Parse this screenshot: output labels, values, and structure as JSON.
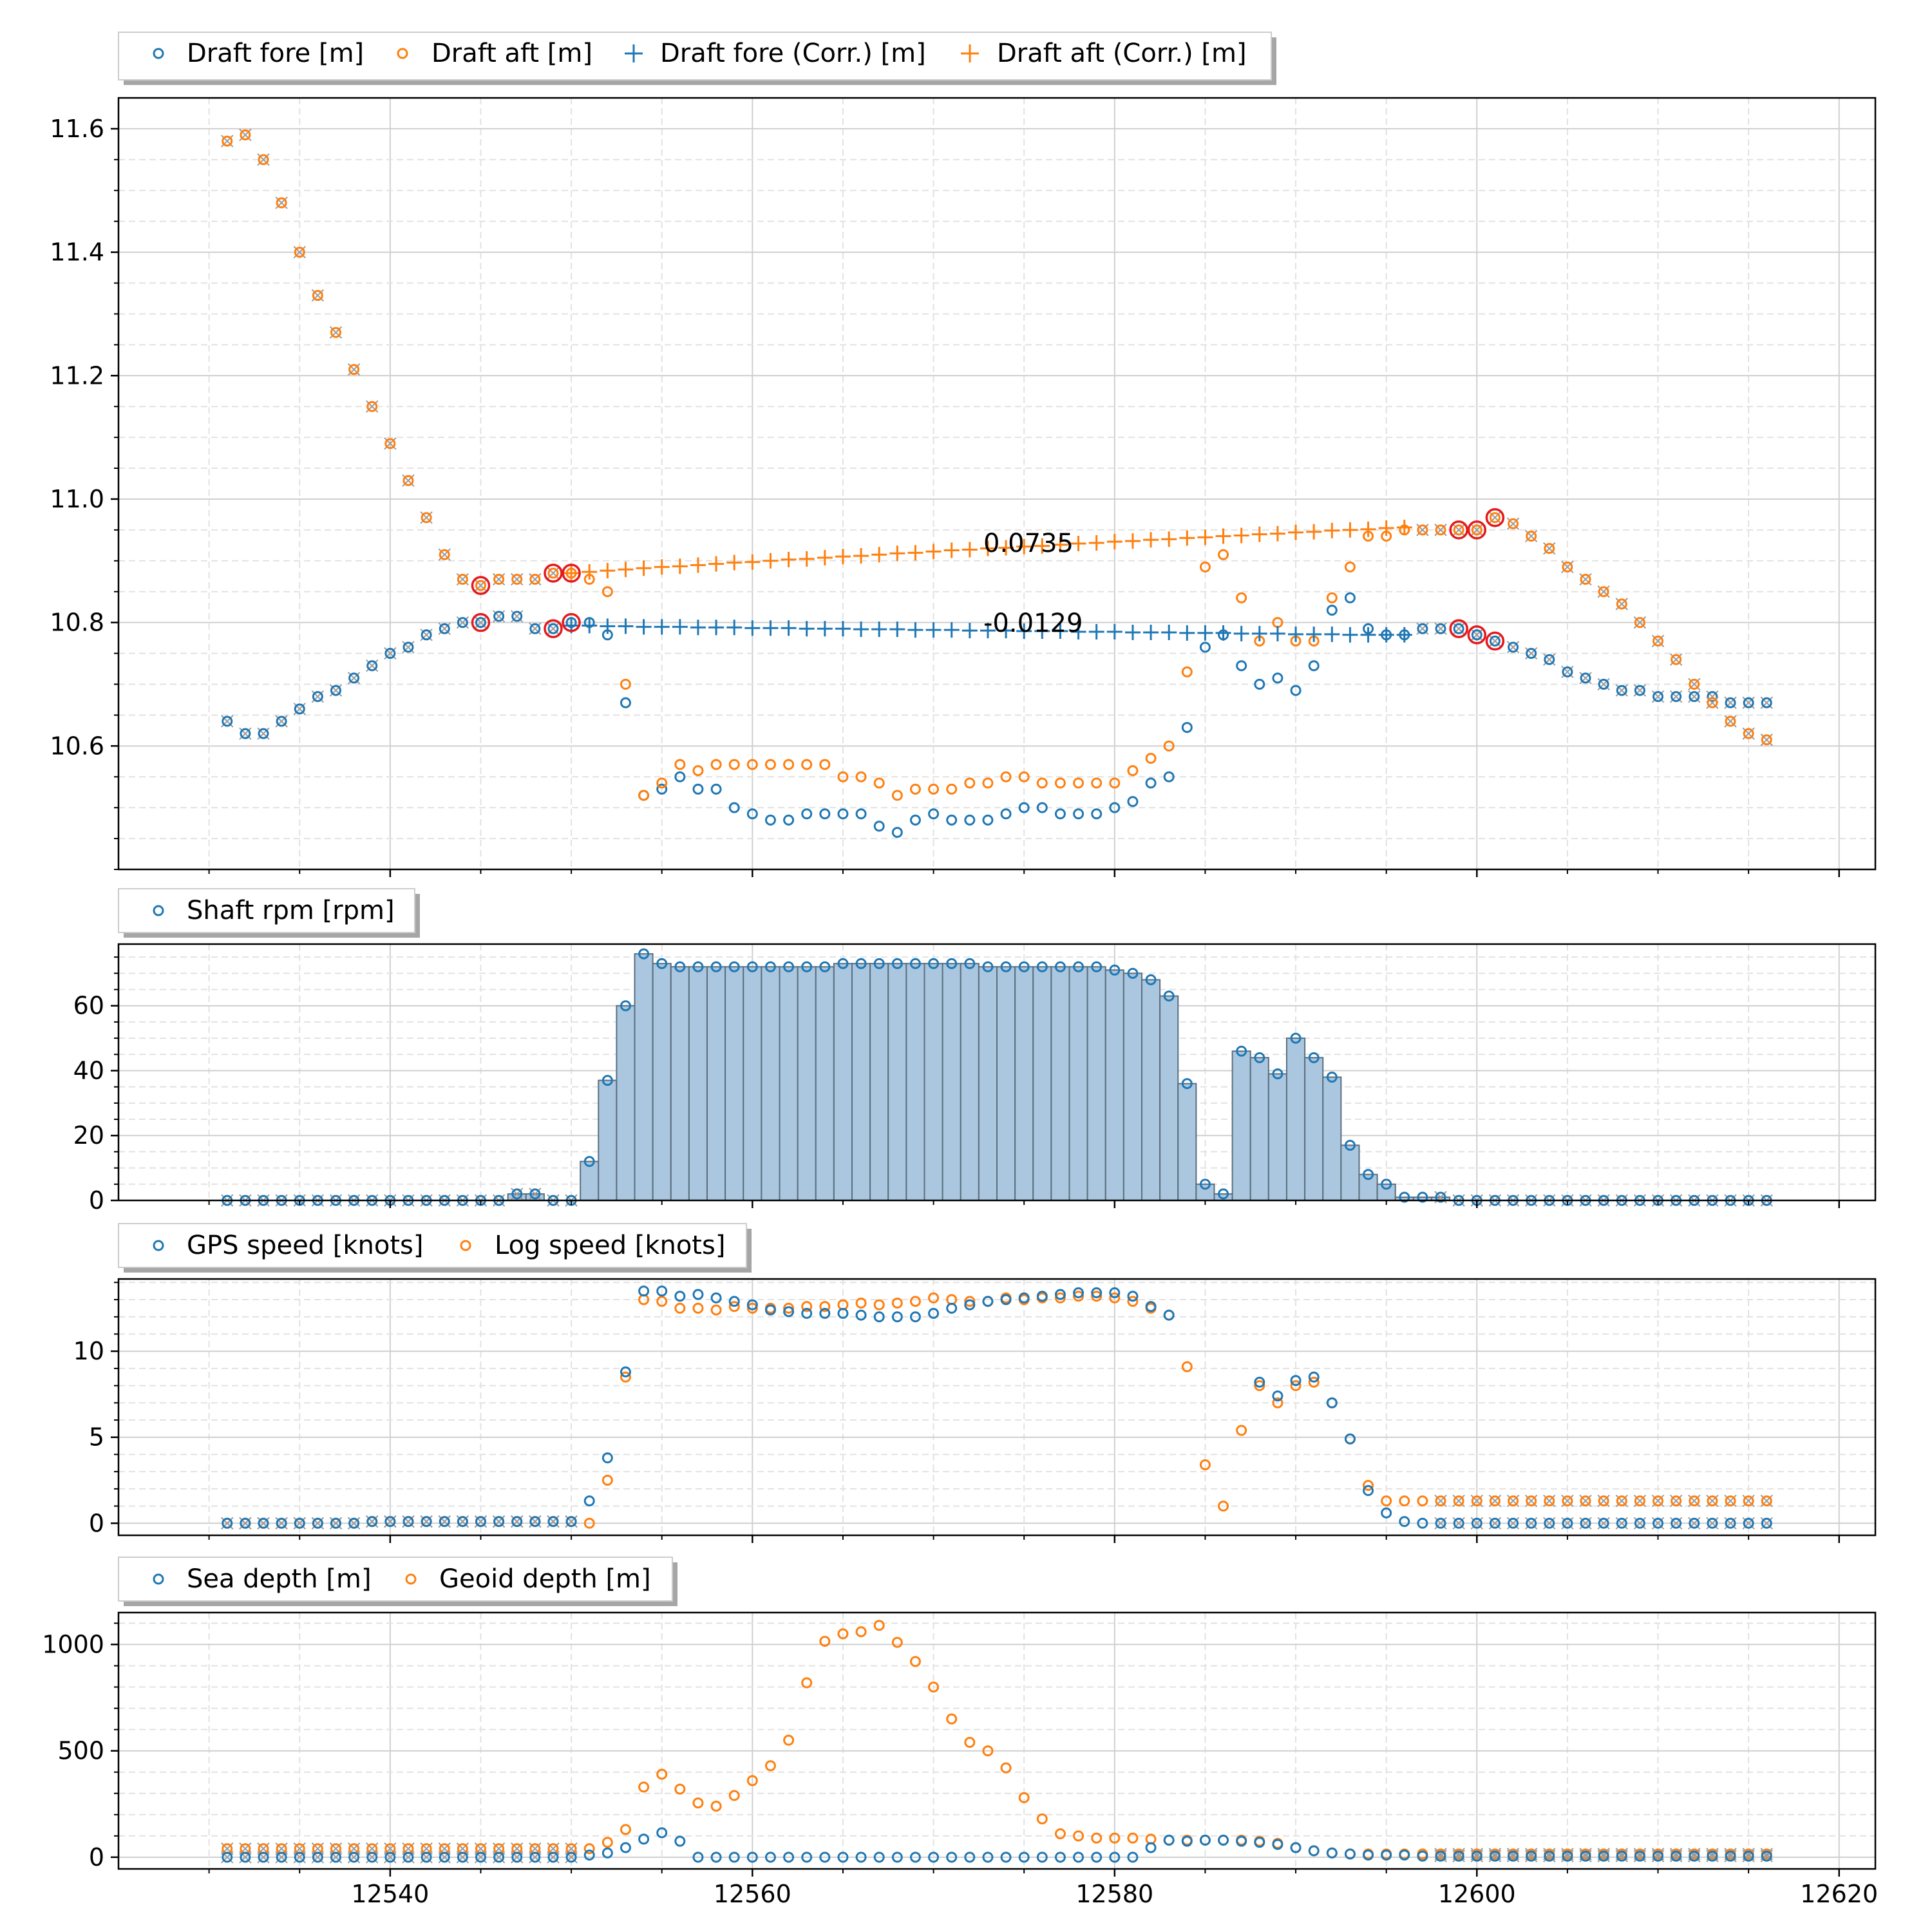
{
  "chart_data": [
    {
      "type": "scatter",
      "panel": "drafts",
      "xlim": [
        12525,
        12622
      ],
      "ylim": [
        10.4,
        11.65
      ],
      "yticks": [
        10.6,
        10.8,
        11.0,
        11.2,
        11.4,
        11.6
      ],
      "ytick_labels": [
        "10.6",
        "10.8",
        "11.0",
        "11.2",
        "11.4",
        "11.6"
      ],
      "grid": true,
      "legend_placement": "top-left above axes",
      "legend": [
        "Draft fore [m]",
        "Draft aft [m]",
        "Draft fore (Corr.) [m]",
        "Draft aft (Corr.) [m]"
      ],
      "colors": {
        "fore": "#1f77b4",
        "aft": "#ff7f0e",
        "highlight": "#e41a1c",
        "excluded": "#999999"
      },
      "annotations": [
        {
          "text": "0.0735",
          "x": 12573.2,
          "y": 10.92
        },
        {
          "text": "-0.0129",
          "x": 12573.2,
          "y": 10.79
        }
      ],
      "x": [
        12531,
        12532,
        12533,
        12534,
        12535,
        12536,
        12537,
        12538,
        12539,
        12540,
        12541,
        12542,
        12543,
        12544,
        12545,
        12546,
        12547,
        12548,
        12549,
        12550,
        12551,
        12552,
        12553,
        12554,
        12555,
        12556,
        12557,
        12558,
        12559,
        12560,
        12561,
        12562,
        12563,
        12564,
        12565,
        12566,
        12567,
        12568,
        12569,
        12570,
        12571,
        12572,
        12573,
        12574,
        12575,
        12576,
        12577,
        12578,
        12579,
        12580,
        12581,
        12582,
        12583,
        12584,
        12585,
        12586,
        12587,
        12588,
        12589,
        12590,
        12591,
        12592,
        12593,
        12594,
        12595,
        12596,
        12597,
        12598,
        12599,
        12600,
        12601,
        12602,
        12603,
        12604,
        12605,
        12606,
        12607,
        12608,
        12609,
        12610,
        12611,
        12612,
        12613,
        12614,
        12615,
        12616
      ],
      "draft_fore": [
        10.64,
        10.62,
        10.62,
        10.64,
        10.66,
        10.68,
        10.69,
        10.71,
        10.73,
        10.75,
        10.76,
        10.78,
        10.79,
        10.8,
        10.8,
        10.81,
        10.81,
        10.79,
        10.79,
        10.8,
        10.8,
        10.78,
        10.67,
        10.52,
        10.53,
        10.55,
        10.53,
        10.53,
        10.5,
        10.49,
        10.48,
        10.48,
        10.49,
        10.49,
        10.49,
        10.49,
        10.47,
        10.46,
        10.48,
        10.49,
        10.48,
        10.48,
        10.48,
        10.49,
        10.5,
        10.5,
        10.49,
        10.49,
        10.49,
        10.5,
        10.51,
        10.54,
        10.55,
        10.63,
        10.76,
        10.78,
        10.73,
        10.7,
        10.71,
        10.69,
        10.73,
        10.82,
        10.84,
        10.79,
        10.78,
        10.78,
        10.79,
        10.79,
        10.79,
        10.78,
        10.77,
        10.76,
        10.75,
        10.74,
        10.72,
        10.71,
        10.7,
        10.69,
        10.69,
        10.68,
        10.68,
        10.68,
        10.68,
        10.67,
        10.67,
        10.67
      ],
      "draft_aft": [
        11.58,
        11.59,
        11.55,
        11.48,
        11.4,
        11.33,
        11.27,
        11.21,
        11.15,
        11.09,
        11.03,
        10.97,
        10.91,
        10.87,
        10.86,
        10.87,
        10.87,
        10.87,
        10.88,
        10.88,
        10.87,
        10.85,
        10.7,
        10.52,
        10.54,
        10.57,
        10.56,
        10.57,
        10.57,
        10.57,
        10.57,
        10.57,
        10.57,
        10.57,
        10.55,
        10.55,
        10.54,
        10.52,
        10.53,
        10.53,
        10.53,
        10.54,
        10.54,
        10.55,
        10.55,
        10.54,
        10.54,
        10.54,
        10.54,
        10.54,
        10.56,
        10.58,
        10.6,
        10.72,
        10.89,
        10.91,
        10.84,
        10.77,
        10.8,
        10.77,
        10.77,
        10.84,
        10.89,
        10.94,
        10.94,
        10.95,
        10.95,
        10.95,
        10.95,
        10.95,
        10.97,
        10.96,
        10.94,
        10.92,
        10.89,
        10.87,
        10.85,
        10.83,
        10.8,
        10.77,
        10.74,
        10.7,
        10.67,
        10.64,
        10.62,
        10.61
      ],
      "corr_x": [
        12550,
        12551,
        12552,
        12553,
        12554,
        12555,
        12556,
        12557,
        12558,
        12559,
        12560,
        12561,
        12562,
        12563,
        12564,
        12565,
        12566,
        12567,
        12568,
        12569,
        12570,
        12571,
        12572,
        12573,
        12574,
        12575,
        12576,
        12577,
        12578,
        12579,
        12580,
        12581,
        12582,
        12583,
        12584,
        12585,
        12586,
        12587,
        12588,
        12589,
        12590,
        12591,
        12592,
        12593,
        12594,
        12595,
        12596
      ],
      "draft_fore_corr": [
        10.795,
        10.795,
        10.794,
        10.794,
        10.793,
        10.793,
        10.793,
        10.792,
        10.792,
        10.792,
        10.791,
        10.791,
        10.791,
        10.79,
        10.79,
        10.79,
        10.789,
        10.789,
        10.789,
        10.788,
        10.788,
        10.788,
        10.787,
        10.787,
        10.787,
        10.786,
        10.786,
        10.786,
        10.785,
        10.785,
        10.785,
        10.784,
        10.784,
        10.784,
        10.783,
        10.783,
        10.783,
        10.782,
        10.782,
        10.782,
        10.781,
        10.781,
        10.781,
        10.78,
        10.78,
        10.78,
        10.78
      ],
      "draft_aft_corr": [
        10.88,
        10.882,
        10.884,
        10.886,
        10.888,
        10.89,
        10.891,
        10.893,
        10.895,
        10.897,
        10.898,
        10.9,
        10.902,
        10.903,
        10.905,
        10.907,
        10.908,
        10.91,
        10.912,
        10.913,
        10.915,
        10.917,
        10.918,
        10.92,
        10.921,
        10.923,
        10.924,
        10.926,
        10.928,
        10.929,
        10.931,
        10.932,
        10.934,
        10.935,
        10.937,
        10.938,
        10.94,
        10.941,
        10.943,
        10.944,
        10.946,
        10.947,
        10.949,
        10.95,
        10.951,
        10.953,
        10.954
      ],
      "highlight_x": [
        12545,
        12549,
        12550,
        12599,
        12600,
        12601
      ],
      "highlight_fore": [
        10.8,
        10.79,
        10.8,
        10.79,
        10.78,
        10.77
      ],
      "highlight_aft": [
        10.86,
        10.88,
        10.88,
        10.95,
        10.95,
        10.97
      ]
    },
    {
      "type": "bar",
      "panel": "rpm",
      "xlim": [
        12525,
        12622
      ],
      "ylim": [
        0,
        79
      ],
      "yticks": [
        0,
        20,
        40,
        60
      ],
      "ytick_labels": [
        "0",
        "20",
        "40",
        "60"
      ],
      "grid": true,
      "legend_placement": "top-left above axes",
      "legend": [
        "Shaft rpm [rpm]"
      ],
      "colors": {
        "bar": "#aac7df",
        "edge": "#5a6f80",
        "marker": "#1f77b4"
      },
      "x": [
        12531,
        12532,
        12533,
        12534,
        12535,
        12536,
        12537,
        12538,
        12539,
        12540,
        12541,
        12542,
        12543,
        12544,
        12545,
        12546,
        12547,
        12548,
        12549,
        12550,
        12551,
        12552,
        12553,
        12554,
        12555,
        12556,
        12557,
        12558,
        12559,
        12560,
        12561,
        12562,
        12563,
        12564,
        12565,
        12566,
        12567,
        12568,
        12569,
        12570,
        12571,
        12572,
        12573,
        12574,
        12575,
        12576,
        12577,
        12578,
        12579,
        12580,
        12581,
        12582,
        12583,
        12584,
        12585,
        12586,
        12587,
        12588,
        12589,
        12590,
        12591,
        12592,
        12593,
        12594,
        12595,
        12596,
        12597,
        12598,
        12599,
        12600,
        12601,
        12602,
        12603,
        12604,
        12605,
        12606,
        12607,
        12608,
        12609,
        12610,
        12611,
        12612,
        12613,
        12614,
        12615,
        12616
      ],
      "values": [
        0,
        0,
        0,
        0,
        0,
        0,
        0,
        0,
        0,
        0,
        0,
        0,
        0,
        0,
        0,
        0,
        2,
        2,
        0,
        0,
        12,
        37,
        60,
        76,
        73,
        72,
        72,
        72,
        72,
        72,
        72,
        72,
        72,
        72,
        73,
        73,
        73,
        73,
        73,
        73,
        73,
        73,
        72,
        72,
        72,
        72,
        72,
        72,
        72,
        71,
        70,
        68,
        63,
        36,
        5,
        2,
        46,
        44,
        39,
        50,
        44,
        38,
        17,
        8,
        5,
        1,
        1,
        1,
        0,
        0,
        0,
        0,
        0,
        0,
        0,
        0,
        0,
        0,
        0,
        0,
        0,
        0,
        0,
        0,
        0,
        0
      ]
    },
    {
      "type": "scatter",
      "panel": "speed",
      "xlim": [
        12525,
        12622
      ],
      "ylim": [
        -0.7,
        14.2
      ],
      "yticks": [
        0,
        5,
        10
      ],
      "ytick_labels": [
        "0",
        "5",
        "10"
      ],
      "grid": true,
      "legend_placement": "top-left above axes",
      "legend": [
        "GPS speed [knots]",
        "Log speed [knots]"
      ],
      "colors": {
        "gps": "#1f77b4",
        "log": "#ff7f0e",
        "excluded": "#999999"
      },
      "x": [
        12531,
        12532,
        12533,
        12534,
        12535,
        12536,
        12537,
        12538,
        12539,
        12540,
        12541,
        12542,
        12543,
        12544,
        12545,
        12546,
        12547,
        12548,
        12549,
        12550,
        12551,
        12552,
        12553,
        12554,
        12555,
        12556,
        12557,
        12558,
        12559,
        12560,
        12561,
        12562,
        12563,
        12564,
        12565,
        12566,
        12567,
        12568,
        12569,
        12570,
        12571,
        12572,
        12573,
        12574,
        12575,
        12576,
        12577,
        12578,
        12579,
        12580,
        12581,
        12582,
        12583,
        12584,
        12585,
        12586,
        12587,
        12588,
        12589,
        12590,
        12591,
        12592,
        12593,
        12594,
        12595,
        12596,
        12597,
        12598,
        12599,
        12600,
        12601,
        12602,
        12603,
        12604,
        12605,
        12606,
        12607,
        12608,
        12609,
        12610,
        12611,
        12612,
        12613,
        12614,
        12615,
        12616
      ],
      "gps_speed": [
        0,
        0,
        0,
        0,
        0,
        0,
        0,
        0,
        0.1,
        0.1,
        0.1,
        0.1,
        0.1,
        0.1,
        0.1,
        0.1,
        0.1,
        0.1,
        0.1,
        0.1,
        1.3,
        3.8,
        8.8,
        13.5,
        13.5,
        13.2,
        13.3,
        13.1,
        12.9,
        12.7,
        12.4,
        12.3,
        12.2,
        12.2,
        12.2,
        12.1,
        12.0,
        12.0,
        12.0,
        12.2,
        12.5,
        12.7,
        12.9,
        13.0,
        13.1,
        13.2,
        13.3,
        13.4,
        13.4,
        13.4,
        13.2,
        12.6,
        12.1,
        null,
        null,
        null,
        null,
        8.2,
        7.4,
        8.3,
        8.5,
        7.0,
        4.9,
        1.9,
        0.6,
        0.1,
        0,
        0,
        0,
        0,
        0,
        0,
        0,
        0,
        0,
        0,
        0,
        0,
        0,
        0,
        0,
        0,
        0,
        0,
        0,
        0
      ],
      "log_speed": [
        0,
        0,
        0,
        0,
        0,
        0,
        0,
        0,
        0.1,
        0.1,
        0.1,
        0.1,
        0.1,
        0.1,
        0.1,
        0.1,
        0.1,
        0.1,
        0.1,
        0.1,
        0,
        2.5,
        8.5,
        13.0,
        12.9,
        12.5,
        12.5,
        12.4,
        12.6,
        12.5,
        12.5,
        12.5,
        12.6,
        12.6,
        12.7,
        12.8,
        12.7,
        12.8,
        12.9,
        13.1,
        13.0,
        12.9,
        12.9,
        13.1,
        13.0,
        13.1,
        13.1,
        13.2,
        13.2,
        13.1,
        12.9,
        12.5,
        12.1,
        9.1,
        3.4,
        1.0,
        5.4,
        8.0,
        7.0,
        8.0,
        8.2,
        7.0,
        4.9,
        2.2,
        1.3,
        1.3,
        1.3,
        1.3,
        1.3,
        1.3,
        1.3,
        1.3,
        1.3,
        1.3,
        1.3,
        1.3,
        1.3,
        1.3,
        1.3,
        1.3,
        1.3,
        1.3,
        1.3,
        1.3,
        1.3,
        1.3
      ]
    },
    {
      "type": "scatter",
      "panel": "depth",
      "xlim": [
        12525,
        12622
      ],
      "ylim": [
        -55,
        1150
      ],
      "yticks": [
        0,
        500,
        1000
      ],
      "ytick_labels": [
        "0",
        "500",
        "1000"
      ],
      "xticks": [
        12540,
        12560,
        12580,
        12600,
        12620
      ],
      "xtick_labels": [
        "12540",
        "12560",
        "12580",
        "12600",
        "12620"
      ],
      "grid": true,
      "legend_placement": "top-left above axes",
      "legend": [
        "Sea depth [m]",
        "Geoid depth [m]"
      ],
      "colors": {
        "sea": "#1f77b4",
        "geoid": "#ff7f0e",
        "excluded": "#999999"
      },
      "x": [
        12531,
        12532,
        12533,
        12534,
        12535,
        12536,
        12537,
        12538,
        12539,
        12540,
        12541,
        12542,
        12543,
        12544,
        12545,
        12546,
        12547,
        12548,
        12549,
        12550,
        12551,
        12552,
        12553,
        12554,
        12555,
        12556,
        12557,
        12558,
        12559,
        12560,
        12561,
        12562,
        12563,
        12564,
        12565,
        12566,
        12567,
        12568,
        12569,
        12570,
        12571,
        12572,
        12573,
        12574,
        12575,
        12576,
        12577,
        12578,
        12579,
        12580,
        12581,
        12582,
        12583,
        12584,
        12585,
        12586,
        12587,
        12588,
        12589,
        12590,
        12591,
        12592,
        12593,
        12594,
        12595,
        12596,
        12597,
        12598,
        12599,
        12600,
        12601,
        12602,
        12603,
        12604,
        12605,
        12606,
        12607,
        12608,
        12609,
        12610,
        12611,
        12612,
        12613,
        12614,
        12615,
        12616
      ],
      "sea_depth": [
        0,
        0,
        0,
        0,
        0,
        0,
        0,
        0,
        0,
        0,
        0,
        0,
        0,
        0,
        0,
        0,
        0,
        0,
        0,
        0,
        10,
        20,
        45,
        85,
        115,
        75,
        0,
        0,
        0,
        0,
        0,
        0,
        0,
        0,
        0,
        0,
        0,
        0,
        0,
        0,
        0,
        0,
        0,
        0,
        0,
        0,
        0,
        0,
        0,
        0,
        0,
        45,
        80,
        75,
        80,
        80,
        75,
        70,
        60,
        45,
        30,
        20,
        15,
        10,
        10,
        10,
        5,
        5,
        5,
        5,
        5,
        5,
        5,
        5,
        5,
        5,
        5,
        5,
        5,
        5,
        5,
        5,
        5,
        5,
        5,
        5
      ],
      "geoid_depth": [
        40,
        40,
        40,
        40,
        40,
        40,
        40,
        40,
        40,
        40,
        40,
        40,
        40,
        40,
        40,
        40,
        40,
        40,
        40,
        40,
        40,
        70,
        130,
        330,
        390,
        320,
        255,
        240,
        290,
        360,
        430,
        550,
        820,
        1015,
        1050,
        1060,
        1090,
        1010,
        920,
        800,
        650,
        540,
        500,
        420,
        280,
        180,
        110,
        100,
        90,
        90,
        90,
        85,
        80,
        80,
        80,
        80,
        80,
        75,
        65,
        45,
        30,
        20,
        15,
        15,
        15,
        15,
        15,
        15,
        15,
        15,
        15,
        15,
        15,
        15,
        15,
        15,
        15,
        15,
        15,
        15,
        15,
        15,
        15,
        15,
        15,
        15
      ]
    }
  ]
}
